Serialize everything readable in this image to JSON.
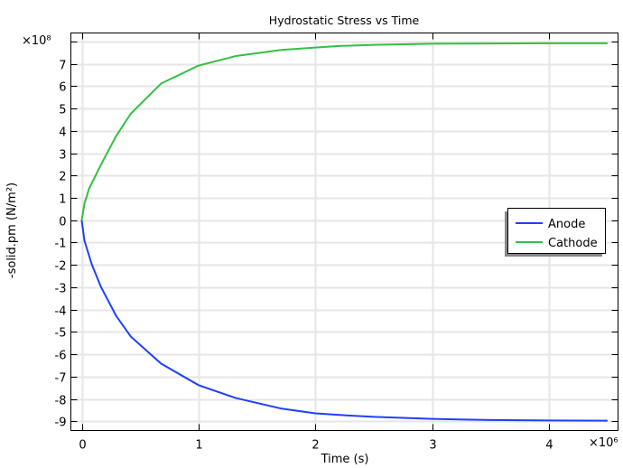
{
  "chart_data": {
    "type": "line",
    "title": "Hydrostatic Stress vs Time",
    "xlabel": "Time (s)",
    "ylabel": "-solid.pm (N/m²)",
    "x_multiplier": "×10⁶",
    "y_multiplier": "×10⁸",
    "xlim": [
      -0.093,
      4.59
    ],
    "ylim": [
      -9.41,
      8.38
    ],
    "x_ticks": [
      0,
      1,
      2,
      3,
      4
    ],
    "y_ticks": [
      8,
      7,
      6,
      5,
      4,
      3,
      2,
      1,
      0,
      -1,
      -2,
      -3,
      -4,
      -5,
      -6,
      -7,
      -8,
      -9
    ],
    "y_tick_labels": [
      "",
      "7",
      "6",
      "5",
      "4",
      "3",
      "2",
      "1",
      "0",
      "-1",
      "-2",
      "-3",
      "-4",
      "-5",
      "-6",
      "-7",
      "-8",
      "-9"
    ],
    "grid": true,
    "legend_position": "right",
    "series": [
      {
        "name": "Anode",
        "color": "#1f3fff",
        "x": [
          0,
          0.023,
          0.087,
          0.165,
          0.293,
          0.42,
          0.68,
          1.0,
          1.32,
          1.71,
          2.0,
          2.22,
          2.5,
          3.0,
          3.5,
          4.0,
          4.5
        ],
        "y": [
          0,
          -0.91,
          -1.99,
          -2.99,
          -4.27,
          -5.21,
          -6.42,
          -7.38,
          -7.96,
          -8.43,
          -8.64,
          -8.72,
          -8.8,
          -8.89,
          -8.94,
          -8.96,
          -8.97
        ]
      },
      {
        "name": "Cathode",
        "color": "#33bf44",
        "x": [
          0,
          0.023,
          0.062,
          0.165,
          0.293,
          0.42,
          0.68,
          1.0,
          1.32,
          1.71,
          2.0,
          2.22,
          2.5,
          3.0,
          3.5,
          4.0,
          4.5
        ],
        "y": [
          0,
          0.74,
          1.41,
          2.49,
          3.76,
          4.77,
          6.12,
          6.92,
          7.35,
          7.62,
          7.73,
          7.8,
          7.85,
          7.9,
          7.91,
          7.92,
          7.92
        ]
      }
    ]
  }
}
